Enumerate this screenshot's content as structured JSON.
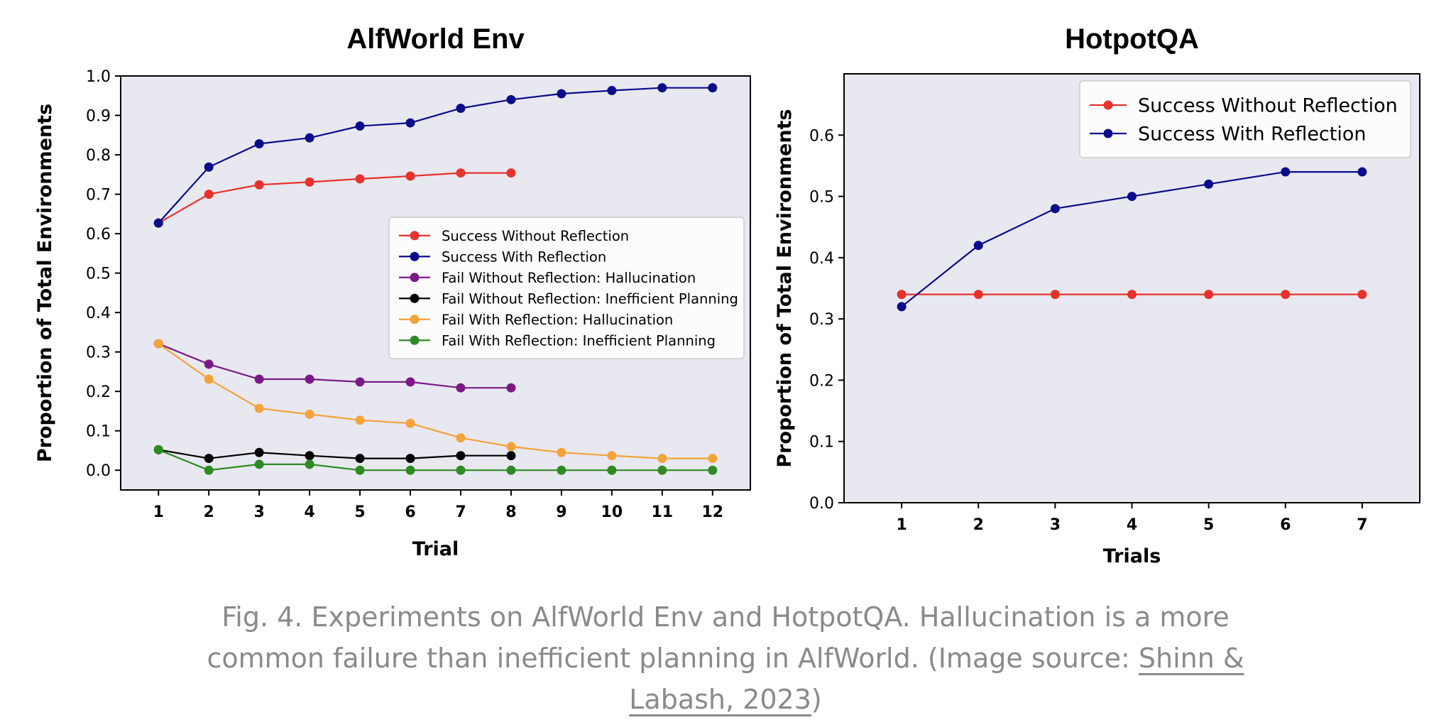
{
  "colors": {
    "plot_bg": "#e8e8f1",
    "red": "#e8322a",
    "navy": "#0b0c8c",
    "purple": "#7b1a86",
    "black": "#000000",
    "orange": "#f4a23a",
    "green": "#2f8a23",
    "caption": "#8a8a8a"
  },
  "chart_data": [
    {
      "type": "line",
      "title": "AlfWorld Env",
      "xlabel": "Trial",
      "ylabel": "Proportion of Total Environments",
      "x": [
        1,
        2,
        3,
        4,
        5,
        6,
        7,
        8,
        9,
        10,
        11,
        12
      ],
      "xlim": [
        0.25,
        12.75
      ],
      "ylim": [
        -0.05,
        1.0
      ],
      "yticks": [
        0.0,
        0.1,
        0.2,
        0.3,
        0.4,
        0.5,
        0.6,
        0.7,
        0.8,
        0.9,
        1.0
      ],
      "grid": false,
      "legend_position": "center-right",
      "series": [
        {
          "name": "Success Without Reflection",
          "color": "red",
          "x": [
            1,
            2,
            3,
            4,
            5,
            6,
            7,
            8
          ],
          "values": [
            0.627,
            0.7,
            0.724,
            0.731,
            0.739,
            0.746,
            0.754,
            0.754
          ]
        },
        {
          "name": "Success With Reflection",
          "color": "navy",
          "x": [
            1,
            2,
            3,
            4,
            5,
            6,
            7,
            8,
            9,
            10,
            11,
            12
          ],
          "values": [
            0.627,
            0.769,
            0.828,
            0.843,
            0.873,
            0.881,
            0.918,
            0.94,
            0.955,
            0.963,
            0.97,
            0.97
          ]
        },
        {
          "name": "Fail Without Reflection: Hallucination",
          "color": "purple",
          "x": [
            1,
            2,
            3,
            4,
            5,
            6,
            7,
            8
          ],
          "values": [
            0.321,
            0.269,
            0.231,
            0.231,
            0.224,
            0.224,
            0.209,
            0.209
          ]
        },
        {
          "name": "Fail Without Reflection: Inefficient Planning",
          "color": "black",
          "x": [
            1,
            2,
            3,
            4,
            5,
            6,
            7,
            8
          ],
          "values": [
            0.052,
            0.03,
            0.045,
            0.037,
            0.03,
            0.03,
            0.037,
            0.037
          ]
        },
        {
          "name": "Fail With Reflection: Hallucination",
          "color": "orange",
          "x": [
            1,
            2,
            3,
            4,
            5,
            6,
            7,
            8,
            9,
            10,
            11,
            12
          ],
          "values": [
            0.321,
            0.231,
            0.157,
            0.142,
            0.127,
            0.119,
            0.082,
            0.06,
            0.045,
            0.037,
            0.03,
            0.03
          ]
        },
        {
          "name": "Fail With Reflection: Inefficient Planning",
          "color": "green",
          "x": [
            1,
            2,
            3,
            4,
            5,
            6,
            7,
            8,
            9,
            10,
            11,
            12
          ],
          "values": [
            0.052,
            0.0,
            0.015,
            0.015,
            0.0,
            0.0,
            0.0,
            0.0,
            0.0,
            0.0,
            0.0,
            0.0
          ]
        }
      ]
    },
    {
      "type": "line",
      "title": "HotpotQA",
      "xlabel": "Trials",
      "ylabel": "Proportion of Total Environments",
      "x": [
        1,
        2,
        3,
        4,
        5,
        6,
        7
      ],
      "xlim": [
        0.25,
        7.75
      ],
      "ylim": [
        0.0,
        0.7
      ],
      "yticks": [
        0.0,
        0.1,
        0.2,
        0.3,
        0.4,
        0.5,
        0.6
      ],
      "grid": false,
      "legend_position": "top-right",
      "series": [
        {
          "name": "Success Without Reflection",
          "color": "red",
          "x": [
            1,
            2,
            3,
            4,
            5,
            6,
            7
          ],
          "values": [
            0.34,
            0.34,
            0.34,
            0.34,
            0.34,
            0.34,
            0.34
          ]
        },
        {
          "name": "Success With Reflection",
          "color": "navy",
          "x": [
            1,
            2,
            3,
            4,
            5,
            6,
            7
          ],
          "values": [
            0.32,
            0.42,
            0.48,
            0.5,
            0.52,
            0.54,
            0.54
          ]
        }
      ]
    }
  ],
  "caption": {
    "text_before_link": "Fig. 4. Experiments on AlfWorld Env and HotpotQA. Hallucination is a more common failure than inefficient planning in AlfWorld. (Image source: ",
    "link_text": "Shinn & Labash, 2023",
    "text_after_link": ")"
  }
}
